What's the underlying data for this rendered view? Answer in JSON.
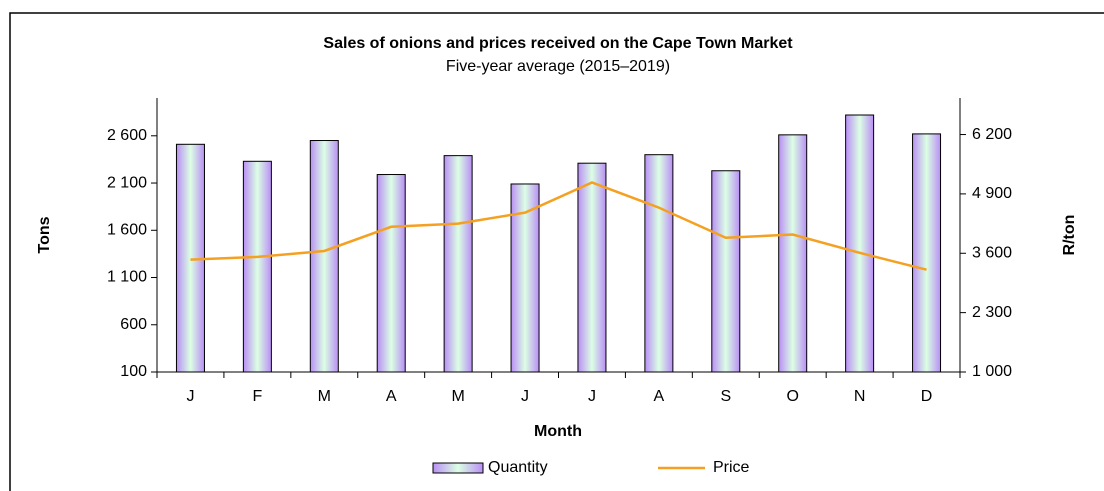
{
  "chart_data": {
    "type": "bar",
    "title": "Sales of onions and prices received on the Cape Town Market",
    "subtitle": "Five-year average (2015–2019)",
    "x_label": "Month",
    "y_label": "Tons",
    "y2_label": "R/ton",
    "categories": [
      "J",
      "F",
      "M",
      "A",
      "M",
      "J",
      "J",
      "A",
      "S",
      "O",
      "N",
      "D"
    ],
    "series": [
      {
        "name": "Quantity",
        "type": "bar",
        "color": "#b98ff5",
        "values": [
          2510,
          2330,
          2550,
          2190,
          2390,
          2090,
          2310,
          2400,
          2230,
          2610,
          2820,
          2620
        ]
      },
      {
        "name": "Price",
        "type": "line",
        "axis": "y2",
        "color": "#f5a020",
        "values": [
          3460,
          3520,
          3650,
          4180,
          4250,
          4490,
          5150,
          4600,
          3940,
          4010,
          3610,
          3240
        ]
      }
    ],
    "ylim": [
      100,
      3000
    ],
    "yticks": [
      100,
      600,
      {
        "value": 1100,
        "label": "1 100"
      },
      {
        "value": 1600,
        "label": "1 600"
      },
      {
        "value": 2100,
        "label": "2 100"
      },
      {
        "value": 2600,
        "label": "2 600"
      }
    ],
    "y2lim": [
      1000,
      7000
    ],
    "y2ticks": [
      {
        "value": 1000,
        "label": "1 000"
      },
      {
        "value": 2300,
        "label": "2 300"
      },
      {
        "value": 3600,
        "label": "3 600"
      },
      {
        "value": 4900,
        "label": "4 900"
      },
      {
        "value": 6200,
        "label": "6 200"
      }
    ],
    "legend": "bottom"
  }
}
